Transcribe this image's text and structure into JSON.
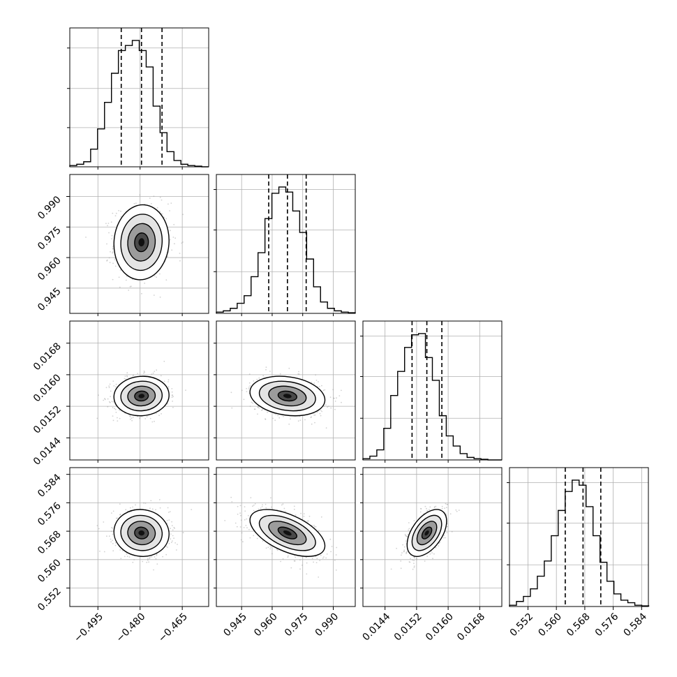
{
  "chart_data": {
    "type": "corner",
    "grid": true,
    "params": [
      {
        "range": [
          -0.505,
          -0.4556
        ],
        "ticks": [
          -0.495,
          -0.48,
          -0.465
        ],
        "tick_labels": [
          "−0.495",
          "−0.480",
          "−0.465"
        ],
        "quantiles": [
          -0.4867,
          -0.4795,
          -0.4722
        ],
        "hist": {
          "edges_start": -0.505,
          "bin_width": 0.00247,
          "counts": [
            0.01,
            0.02,
            0.04,
            0.14,
            0.3,
            0.51,
            0.74,
            0.92,
            0.96,
            1.0,
            0.92,
            0.79,
            0.48,
            0.27,
            0.12,
            0.05,
            0.02,
            0.01,
            0.005,
            0.0
          ]
        },
        "hist_yticks": [
          0.31,
          0.62,
          0.94
        ]
      },
      {
        "range": [
          0.9326,
          1.0008
        ],
        "ticks": [
          0.945,
          0.96,
          0.975,
          0.99
        ],
        "tick_labels": [
          "0.945",
          "0.960",
          "0.975",
          "0.990"
        ],
        "quantiles": [
          0.9583,
          0.9675,
          0.9767
        ],
        "hist": {
          "edges_start": 0.9326,
          "bin_width": 0.00341,
          "counts": [
            0.01,
            0.02,
            0.04,
            0.08,
            0.14,
            0.29,
            0.48,
            0.75,
            0.95,
            1.0,
            0.96,
            0.81,
            0.64,
            0.43,
            0.21,
            0.09,
            0.04,
            0.02,
            0.01,
            0.005
          ]
        },
        "hist_yticks": [
          0.33,
          0.66,
          0.98
        ]
      },
      {
        "range": [
          0.01384,
          0.01736
        ],
        "ticks": [
          0.0144,
          0.0152,
          0.016,
          0.0168
        ],
        "tick_labels": [
          "0.0144",
          "0.0152",
          "0.0160",
          "0.0168"
        ],
        "quantiles": [
          0.015085,
          0.01546,
          0.01584
        ],
        "hist": {
          "edges_start": 0.01384,
          "bin_width": 0.000176,
          "counts": [
            0.01,
            0.03,
            0.08,
            0.25,
            0.51,
            0.7,
            0.89,
            0.99,
            1.0,
            0.81,
            0.63,
            0.35,
            0.19,
            0.11,
            0.05,
            0.02,
            0.01,
            0.005,
            0.0,
            0.0
          ]
        },
        "hist_yticks": [
          0.33,
          0.66,
          0.98
        ]
      },
      {
        "range": [
          0.5468,
          0.5859
        ],
        "ticks": [
          0.552,
          0.56,
          0.568,
          0.576,
          0.584
        ],
        "tick_labels": [
          "0.552",
          "0.560",
          "0.568",
          "0.576",
          "0.584"
        ],
        "quantiles": [
          0.5625,
          0.5675,
          0.5725
        ],
        "hist": {
          "edges_start": 0.5468,
          "bin_width": 0.00196,
          "counts": [
            0.01,
            0.04,
            0.08,
            0.14,
            0.24,
            0.36,
            0.56,
            0.76,
            0.91,
            1.0,
            0.96,
            0.79,
            0.56,
            0.35,
            0.2,
            0.1,
            0.05,
            0.03,
            0.01,
            0.005
          ]
        },
        "hist_yticks": [
          0.33,
          0.66,
          0.98
        ]
      }
    ],
    "pairs": [
      {
        "row": 1,
        "col": 0,
        "center": [
          -0.4795,
          0.9675
        ],
        "sd": [
          0.0049,
          0.0092
        ],
        "corr": 0.05
      },
      {
        "row": 2,
        "col": 0,
        "center": [
          -0.4795,
          0.01546
        ],
        "sd": [
          0.0049,
          0.00025
        ],
        "corr": 0.05
      },
      {
        "row": 2,
        "col": 1,
        "center": [
          0.9675,
          0.01546
        ],
        "sd": [
          0.0092,
          0.00025
        ],
        "corr": -0.2
      },
      {
        "row": 3,
        "col": 0,
        "center": [
          -0.4795,
          0.5675
        ],
        "sd": [
          0.0049,
          0.0033
        ],
        "corr": -0.05
      },
      {
        "row": 3,
        "col": 1,
        "center": [
          0.9675,
          0.5675
        ],
        "sd": [
          0.0092,
          0.0033
        ],
        "corr": -0.55
      },
      {
        "row": 3,
        "col": 2,
        "center": [
          0.01546,
          0.5675
        ],
        "sd": [
          0.00025,
          0.0033
        ],
        "corr": 0.5
      }
    ],
    "contour_levels_sigma": [
      0.5,
      1.0,
      1.5,
      2.0
    ]
  }
}
